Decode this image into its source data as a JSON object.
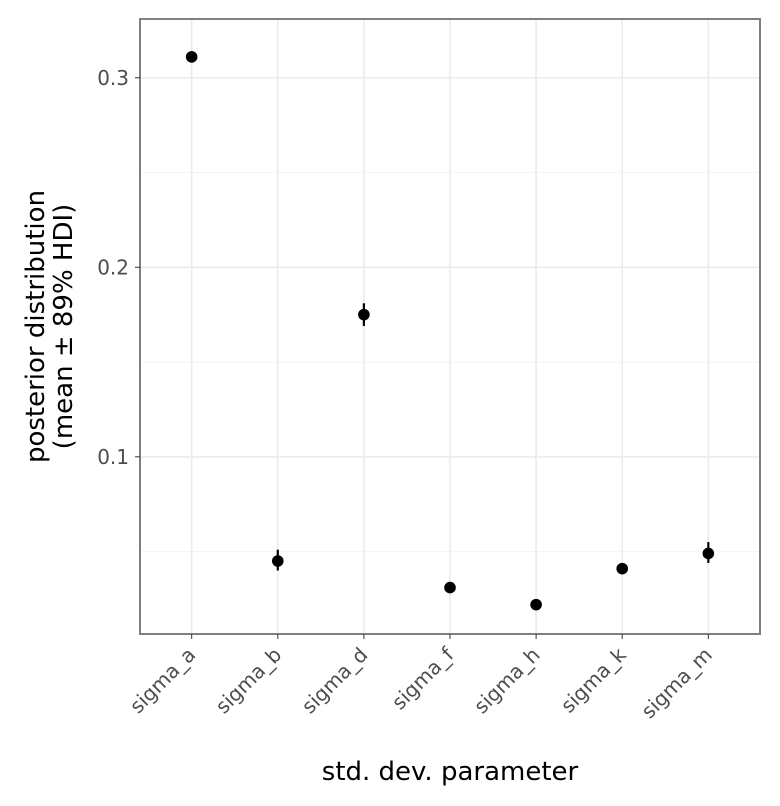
{
  "chart_data": {
    "type": "scatter",
    "title": "",
    "xlabel": "std. dev. parameter",
    "ylabel_lines": [
      "posterior distribution",
      "(mean ± 89% HDI)"
    ],
    "categories": [
      "sigma_a",
      "sigma_b",
      "sigma_d",
      "sigma_f",
      "sigma_h",
      "sigma_k",
      "sigma_m"
    ],
    "series": [
      {
        "mean": [
          0.311,
          0.045,
          0.175,
          0.031,
          0.022,
          0.041,
          0.049
        ],
        "lower": [
          0.309,
          0.04,
          0.169,
          0.029,
          0.021,
          0.04,
          0.044
        ],
        "upper": [
          0.314,
          0.051,
          0.181,
          0.033,
          0.023,
          0.042,
          0.055
        ]
      }
    ],
    "ylim": [
      0.0065,
      0.331
    ],
    "yticks": [
      0.1,
      0.2,
      0.3
    ],
    "ytick_labels": [
      "0.1",
      "0.2",
      "0.3"
    ],
    "grid": true,
    "legend": "none",
    "colors": {
      "point": "#000000",
      "grid": "#ebebeb",
      "panel_border": "#7f7f7f",
      "tick_text": "#4d4d4d"
    }
  }
}
